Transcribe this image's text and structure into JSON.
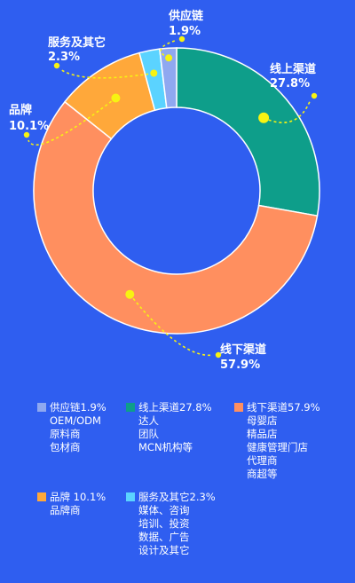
{
  "chart_data": {
    "type": "pie",
    "variant": "donut",
    "slices": [
      {
        "name": "线上渠道",
        "value": 27.8,
        "pct_label": "27.8%",
        "color": "#0e9e8a"
      },
      {
        "name": "线下渠道",
        "value": 57.9,
        "pct_label": "57.9%",
        "color": "#ff8f5f"
      },
      {
        "name": "品牌",
        "value": 10.1,
        "pct_label": "10.1%",
        "color": "#ffa83a"
      },
      {
        "name": "服务及其它",
        "value": 2.3,
        "pct_label": "2.3%",
        "color": "#5bd3ff"
      },
      {
        "name": "供应链",
        "value": 1.9,
        "pct_label": "1.9%",
        "color": "#8fa8f0"
      }
    ],
    "callout_color": "#f7f312"
  },
  "legend": [
    {
      "key": "supply",
      "label": "供应链1.9%",
      "color": "#8fa8f0",
      "items": [
        "OEM/ODM",
        "原料商",
        "包材商"
      ]
    },
    {
      "key": "online",
      "label": "线上渠道27.8%",
      "color": "#0e9e8a",
      "items": [
        "达人",
        "团队",
        "MCN机构等"
      ]
    },
    {
      "key": "offline",
      "label": "线下渠道57.9%",
      "color": "#ff8f5f",
      "items": [
        "母婴店",
        "精品店",
        "健康管理门店",
        "代理商",
        "商超等"
      ]
    },
    {
      "key": "brand",
      "label": "品牌 10.1%",
      "color": "#ffa83a",
      "items": [
        "品牌商"
      ]
    },
    {
      "key": "service",
      "label": "服务及其它2.3%",
      "color": "#5bd3ff",
      "items": [
        "媒体、咨询",
        "培训、投资",
        "数据、广告",
        "设计及其它"
      ]
    }
  ]
}
